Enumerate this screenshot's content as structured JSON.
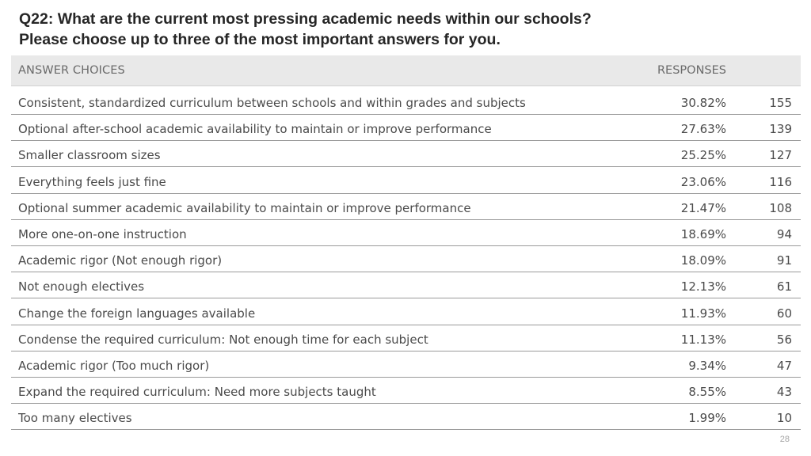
{
  "title": {
    "line1": "Q22: What are the current most pressing academic needs within our schools?",
    "line2": "Please choose up to three of the most important answers for you."
  },
  "header": {
    "choices": "ANSWER CHOICES",
    "responses": "RESPONSES"
  },
  "page_number": "28",
  "chart_data": {
    "type": "table",
    "columns": [
      "ANSWER CHOICES",
      "RESPONSES",
      ""
    ],
    "rows": [
      {
        "label": "Consistent, standardized curriculum between schools and within grades and subjects",
        "percent": "30.82%",
        "count": "155"
      },
      {
        "label": "Optional after-school academic availability to maintain or improve performance",
        "percent": "27.63%",
        "count": "139"
      },
      {
        "label": "Smaller classroom sizes",
        "percent": "25.25%",
        "count": "127"
      },
      {
        "label": "Everything feels just fine",
        "percent": "23.06%",
        "count": "116"
      },
      {
        "label": "Optional summer academic availability to maintain or improve performance",
        "percent": "21.47%",
        "count": "108"
      },
      {
        "label": "More one-on-one instruction",
        "percent": "18.69%",
        "count": "94"
      },
      {
        "label": "Academic rigor (Not enough rigor)",
        "percent": "18.09%",
        "count": "91"
      },
      {
        "label": "Not enough electives",
        "percent": "12.13%",
        "count": "61"
      },
      {
        "label": "Change the foreign languages available",
        "percent": "11.93%",
        "count": "60"
      },
      {
        "label": "Condense the required curriculum: Not enough time for each subject",
        "percent": "11.13%",
        "count": "56"
      },
      {
        "label": "Academic rigor (Too much rigor)",
        "percent": "9.34%",
        "count": "47"
      },
      {
        "label": "Expand the required curriculum: Need more subjects taught",
        "percent": "8.55%",
        "count": "43"
      },
      {
        "label": "Too many electives",
        "percent": "1.99%",
        "count": "10"
      }
    ]
  }
}
